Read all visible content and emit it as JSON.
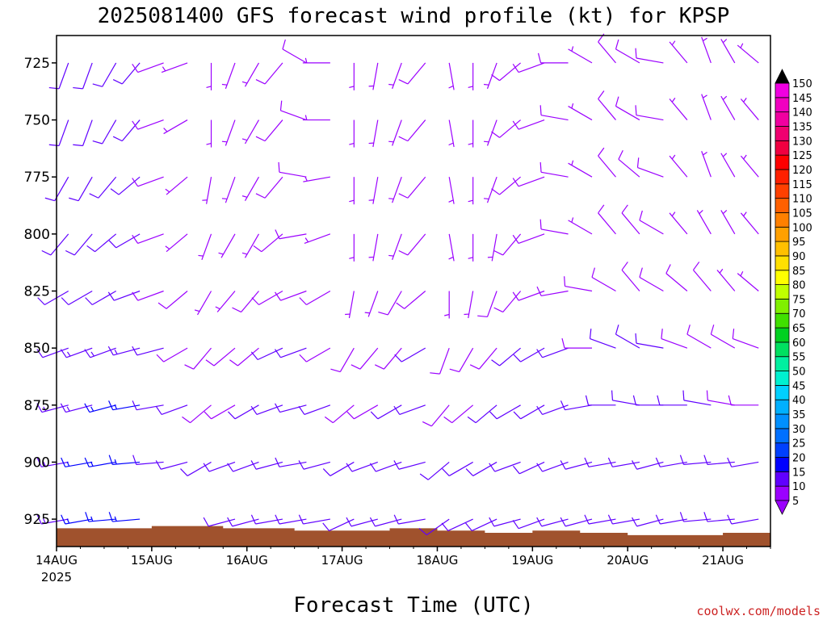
{
  "chart_data": {
    "type": "wind_barb_profile",
    "title": "2025081400 GFS forecast wind profile (kt) for KPSP",
    "xlabel": "Forecast Time (UTC)",
    "y_ticks": [
      "725",
      "750",
      "775",
      "800",
      "825",
      "850",
      "875",
      "900",
      "925"
    ],
    "y_tick_values": [
      725,
      750,
      775,
      800,
      825,
      850,
      875,
      900,
      925
    ],
    "ylim_hpa": [
      713,
      937
    ],
    "x_ticks": [
      "14AUG",
      "15AUG",
      "16AUG",
      "17AUG",
      "18AUG",
      "19AUG",
      "20AUG",
      "21AUG"
    ],
    "x_tick_year": "2025",
    "xlim_days": [
      0,
      7.5
    ],
    "surface_color": "#a0522d",
    "colorbar": {
      "levels": [
        5,
        10,
        15,
        20,
        25,
        30,
        35,
        40,
        45,
        50,
        55,
        60,
        65,
        70,
        75,
        80,
        85,
        90,
        95,
        100,
        105,
        110,
        115,
        120,
        125,
        130,
        135,
        140,
        145,
        150
      ],
      "labels": [
        "5",
        "10",
        "15",
        "20",
        "25",
        "30",
        "35",
        "40",
        "45",
        "50",
        "55",
        "60",
        "65",
        "70",
        "75",
        "80",
        "85",
        "90",
        "95",
        "100",
        "105",
        "110",
        "115",
        "120",
        "125",
        "130",
        "135",
        "140",
        "145",
        "150"
      ],
      "colors": [
        "#9b00ff",
        "#6000ff",
        "#0000ff",
        "#0040ff",
        "#0070ff",
        "#0090ff",
        "#00b0ff",
        "#00d0ff",
        "#00f0d0",
        "#00f0a0",
        "#00e060",
        "#00d020",
        "#40e000",
        "#80f000",
        "#c0ff00",
        "#ffff00",
        "#ffe000",
        "#ffc000",
        "#ffa000",
        "#ff8000",
        "#ff6000",
        "#ff4000",
        "#ff2000",
        "#ff0000",
        "#f00040",
        "#f00070",
        "#f000a0",
        "#f000c0",
        "#f000e0",
        "#f000ff"
      ]
    },
    "pressure_levels": [
      725,
      750,
      775,
      800,
      825,
      850,
      875,
      900,
      925
    ],
    "barb_times_days": [
      0.125,
      0.375,
      0.625,
      0.875,
      1.125,
      1.375,
      1.625,
      1.875,
      2.125,
      2.375,
      2.625,
      2.875,
      3.125,
      3.375,
      3.625,
      3.875,
      4.125,
      4.375,
      4.625,
      4.875,
      5.125,
      5.375,
      5.625,
      5.875,
      6.125,
      6.375,
      6.625,
      6.875,
      7.125,
      7.375
    ],
    "wind_direction_deg": [
      [
        200,
        200,
        210,
        220,
        250,
        250,
        180,
        200,
        210,
        220,
        300,
        270,
        180,
        190,
        200,
        220,
        170,
        180,
        200,
        230,
        250,
        270,
        300,
        320,
        300,
        280,
        320,
        340,
        330,
        310
      ],
      [
        200,
        200,
        210,
        220,
        250,
        240,
        180,
        200,
        210,
        220,
        290,
        270,
        180,
        190,
        200,
        220,
        170,
        180,
        200,
        230,
        250,
        280,
        300,
        320,
        300,
        280,
        320,
        340,
        330,
        320
      ],
      [
        210,
        210,
        220,
        230,
        250,
        230,
        190,
        200,
        210,
        220,
        280,
        260,
        180,
        190,
        200,
        220,
        170,
        180,
        200,
        230,
        250,
        280,
        300,
        320,
        310,
        290,
        320,
        340,
        330,
        320
      ],
      [
        220,
        220,
        230,
        240,
        250,
        230,
        200,
        210,
        210,
        230,
        260,
        250,
        180,
        190,
        200,
        220,
        170,
        180,
        190,
        220,
        250,
        280,
        300,
        320,
        320,
        300,
        320,
        330,
        330,
        320
      ],
      [
        240,
        240,
        240,
        250,
        250,
        230,
        210,
        220,
        220,
        240,
        250,
        240,
        190,
        200,
        210,
        230,
        180,
        190,
        200,
        220,
        250,
        260,
        280,
        300,
        320,
        300,
        310,
        320,
        320,
        310
      ],
      [
        250,
        250,
        250,
        255,
        255,
        240,
        220,
        230,
        230,
        245,
        250,
        240,
        210,
        220,
        220,
        240,
        200,
        210,
        220,
        230,
        240,
        250,
        270,
        290,
        300,
        280,
        290,
        300,
        300,
        290
      ],
      [
        255,
        255,
        255,
        260,
        260,
        250,
        230,
        240,
        240,
        250,
        255,
        250,
        230,
        240,
        240,
        250,
        220,
        230,
        230,
        240,
        240,
        250,
        260,
        270,
        280,
        270,
        270,
        280,
        280,
        270
      ],
      [
        260,
        260,
        260,
        265,
        265,
        255,
        240,
        250,
        250,
        255,
        260,
        255,
        240,
        250,
        250,
        255,
        230,
        240,
        240,
        250,
        245,
        250,
        255,
        260,
        260,
        255,
        260,
        265,
        265,
        260
      ],
      [
        260,
        260,
        265,
        265,
        265,
        260,
        245,
        255,
        255,
        260,
        260,
        260,
        245,
        255,
        255,
        260,
        235,
        245,
        245,
        255,
        250,
        255,
        255,
        260,
        260,
        255,
        260,
        265,
        265,
        260
      ]
    ],
    "wind_speed_kt": [
      [
        10,
        10,
        10,
        10,
        8,
        7,
        6,
        6,
        7,
        8,
        8,
        7,
        6,
        6,
        7,
        8,
        6,
        6,
        7,
        8,
        8,
        8,
        7,
        8,
        8,
        8,
        7,
        7,
        6,
        6
      ],
      [
        10,
        10,
        10,
        10,
        8,
        7,
        6,
        6,
        7,
        8,
        8,
        7,
        6,
        6,
        7,
        8,
        6,
        6,
        7,
        8,
        8,
        8,
        7,
        8,
        8,
        8,
        7,
        7,
        6,
        6
      ],
      [
        10,
        10,
        10,
        10,
        8,
        7,
        6,
        6,
        7,
        8,
        8,
        7,
        6,
        6,
        7,
        8,
        6,
        6,
        7,
        8,
        8,
        8,
        7,
        8,
        8,
        8,
        7,
        7,
        6,
        6
      ],
      [
        10,
        10,
        10,
        10,
        8,
        7,
        6,
        6,
        7,
        8,
        8,
        7,
        6,
        6,
        7,
        8,
        6,
        6,
        7,
        8,
        8,
        8,
        7,
        8,
        8,
        8,
        7,
        7,
        6,
        6
      ],
      [
        11,
        11,
        12,
        12,
        9,
        8,
        7,
        7,
        8,
        9,
        9,
        8,
        7,
        7,
        8,
        9,
        7,
        7,
        8,
        9,
        9,
        9,
        8,
        9,
        9,
        9,
        8,
        8,
        7,
        7
      ],
      [
        12,
        13,
        14,
        14,
        10,
        9,
        8,
        8,
        9,
        10,
        10,
        9,
        8,
        8,
        9,
        10,
        8,
        8,
        9,
        10,
        10,
        10,
        9,
        10,
        10,
        10,
        9,
        9,
        8,
        8
      ],
      [
        13,
        14,
        15,
        15,
        11,
        10,
        9,
        9,
        10,
        11,
        11,
        10,
        9,
        9,
        10,
        11,
        9,
        9,
        10,
        11,
        11,
        11,
        10,
        11,
        11,
        11,
        10,
        10,
        9,
        9
      ],
      [
        14,
        15,
        16,
        16,
        12,
        11,
        10,
        10,
        11,
        12,
        12,
        11,
        10,
        10,
        11,
        12,
        10,
        10,
        11,
        12,
        12,
        12,
        11,
        12,
        12,
        12,
        11,
        11,
        10,
        10
      ],
      [
        14,
        15,
        16,
        16,
        12,
        11,
        10,
        10,
        11,
        12,
        12,
        11,
        10,
        10,
        11,
        12,
        10,
        10,
        11,
        12,
        12,
        12,
        11,
        12,
        12,
        12,
        11,
        11,
        10,
        10
      ]
    ],
    "surface_pressure_hpa": [
      929,
      929,
      929,
      929,
      928,
      928,
      928,
      929,
      929,
      929,
      930,
      930,
      930,
      930,
      929,
      929,
      930,
      930,
      931,
      931,
      930,
      930,
      931,
      931,
      932,
      932,
      932,
      932,
      931,
      931
    ],
    "credit": "coolwx.com/models"
  }
}
